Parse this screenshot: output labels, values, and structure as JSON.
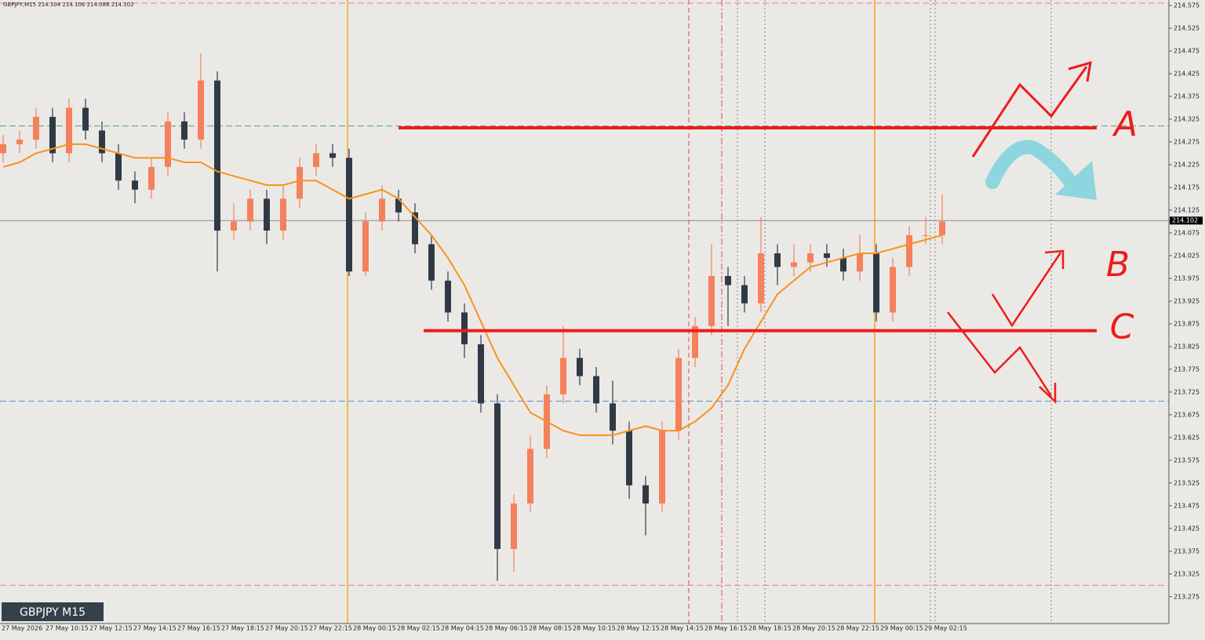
{
  "chart_data": {
    "type": "candlestick",
    "title": "GBPJPY,M15  214.104 214.106 214.088 214.102",
    "subtitle": "GBPJPY M15",
    "up_color": "#f4805e",
    "down_color": "#2f3a45",
    "open": [
      214.25,
      214.27,
      214.28,
      214.33,
      214.25,
      214.35,
      214.3,
      214.25,
      214.19,
      214.17,
      214.22,
      214.32,
      214.28,
      214.41,
      214.08,
      214.1,
      214.15,
      214.08,
      214.15,
      214.22,
      214.25,
      214.24,
      213.99,
      214.1,
      214.15,
      214.12,
      214.05,
      213.97,
      213.9,
      213.83,
      213.7,
      213.38,
      213.48,
      213.6,
      213.72,
      213.8,
      213.76,
      213.7,
      213.64,
      213.52,
      213.48,
      213.64,
      213.8,
      213.87,
      213.98,
      213.96,
      213.92,
      214.03,
      214.0,
      214.01,
      214.03,
      214.02,
      213.99,
      214.03,
      213.9,
      214.0,
      214.07,
      214.07
    ],
    "high": [
      214.29,
      214.3,
      214.35,
      214.35,
      214.37,
      214.37,
      214.32,
      214.27,
      214.21,
      214.24,
      214.34,
      214.34,
      214.47,
      214.43,
      214.14,
      214.17,
      214.17,
      214.18,
      214.24,
      214.27,
      214.27,
      214.26,
      214.12,
      214.18,
      214.17,
      214.14,
      214.07,
      213.99,
      213.92,
      213.85,
      213.72,
      213.5,
      213.63,
      213.74,
      213.87,
      213.82,
      213.78,
      213.75,
      213.66,
      213.54,
      213.66,
      213.82,
      213.89,
      214.05,
      214.0,
      213.98,
      214.11,
      214.05,
      214.05,
      214.05,
      214.05,
      214.04,
      214.07,
      214.05,
      214.02,
      214.09,
      214.11,
      214.16
    ],
    "low": [
      214.23,
      214.25,
      214.26,
      214.23,
      214.23,
      214.28,
      214.23,
      214.17,
      214.14,
      214.15,
      214.2,
      214.26,
      214.26,
      213.99,
      214.06,
      214.08,
      214.05,
      214.06,
      214.13,
      214.2,
      214.22,
      213.98,
      213.98,
      214.08,
      214.1,
      214.03,
      213.95,
      213.88,
      213.8,
      213.68,
      213.31,
      213.33,
      213.46,
      213.58,
      213.7,
      213.74,
      213.68,
      213.61,
      213.49,
      213.41,
      213.46,
      213.62,
      213.78,
      213.85,
      213.87,
      213.9,
      213.9,
      213.96,
      213.98,
      213.99,
      214.0,
      213.97,
      213.97,
      213.88,
      213.88,
      213.98,
      214.05,
      214.05
    ],
    "close": [
      214.27,
      214.28,
      214.33,
      214.25,
      214.35,
      214.3,
      214.25,
      214.19,
      214.17,
      214.22,
      214.32,
      214.28,
      214.41,
      214.08,
      214.1,
      214.15,
      214.08,
      214.15,
      214.22,
      214.25,
      214.24,
      213.99,
      214.1,
      214.15,
      214.12,
      214.05,
      213.97,
      213.9,
      213.83,
      213.7,
      213.38,
      213.48,
      213.6,
      213.72,
      213.8,
      213.76,
      213.7,
      213.64,
      213.52,
      213.48,
      213.64,
      213.8,
      213.87,
      213.98,
      213.96,
      213.92,
      214.03,
      214.0,
      214.01,
      214.03,
      214.02,
      213.99,
      214.03,
      213.9,
      214.0,
      214.07,
      214.07,
      214.1
    ],
    "ma": {
      "color": "#f7931e",
      "values": [
        214.22,
        214.23,
        214.25,
        214.26,
        214.27,
        214.27,
        214.26,
        214.25,
        214.24,
        214.24,
        214.24,
        214.23,
        214.23,
        214.21,
        214.2,
        214.19,
        214.18,
        214.18,
        214.19,
        214.19,
        214.17,
        214.15,
        214.16,
        214.17,
        214.15,
        214.11,
        214.07,
        214.02,
        213.96,
        213.88,
        213.8,
        213.74,
        213.68,
        213.66,
        213.64,
        213.63,
        213.63,
        213.63,
        213.64,
        213.65,
        213.64,
        213.64,
        213.66,
        213.69,
        213.74,
        213.82,
        213.88,
        213.94,
        213.97,
        214.0,
        214.01,
        214.02,
        214.03,
        214.03,
        214.04,
        214.05,
        214.06,
        214.07
      ]
    },
    "levels": [
      {
        "value": 214.58,
        "color": "#e87aa8"
      },
      {
        "value": 214.31,
        "color": "#5a9a78"
      },
      {
        "value": 213.705,
        "color": "#5b8fd0"
      },
      {
        "value": 213.3,
        "color": "#e87aa8"
      }
    ],
    "current_price": 214.102,
    "annotations": [
      {
        "label": "A",
        "value": 214.306
      },
      {
        "label": "B"
      },
      {
        "label": "C",
        "value": 213.86
      }
    ],
    "x_labels": [
      "27 May 2026",
      "27 May 10:15",
      "27 May 12:15",
      "27 May 14:15",
      "27 May 16:15",
      "27 May 18:15",
      "27 May 20:15",
      "27 May 22:15",
      "28 May 00:15",
      "28 May 02:15",
      "28 May 04:15",
      "28 May 06:15",
      "28 May 08:15",
      "28 May 10:15",
      "28 May 12:15",
      "28 May 14:15",
      "28 May 16:15",
      "28 May 18:15",
      "28 May 20:15",
      "28 May 22:15",
      "29 May 00:15",
      "29 May 02:15"
    ],
    "ylim": [
      213.216,
      214.587
    ],
    "yticks": [
      214.575,
      214.525,
      214.475,
      214.425,
      214.375,
      214.325,
      214.275,
      214.225,
      214.175,
      214.125,
      214.075,
      214.025,
      213.975,
      213.925,
      213.875,
      213.825,
      213.775,
      213.725,
      213.675,
      213.625,
      213.575,
      213.525,
      213.475,
      213.425,
      213.375,
      213.325,
      213.275
    ]
  }
}
